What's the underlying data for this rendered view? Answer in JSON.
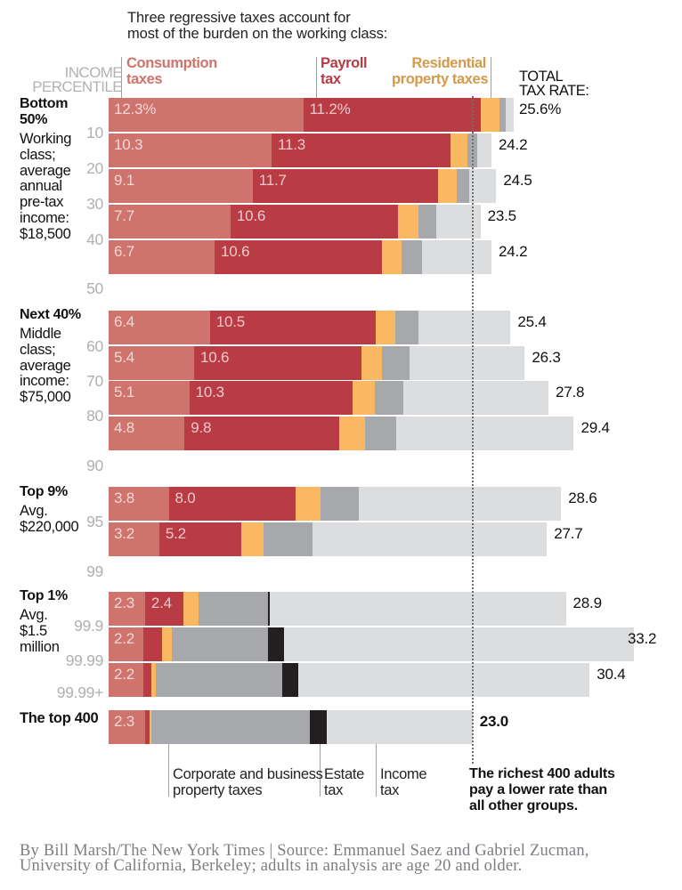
{
  "header": {
    "intro_lines": [
      "Three regressive taxes account for",
      "most of the burden on the working class:"
    ],
    "percentile_axis_lines": [
      "INCOME",
      "PERCENTILE"
    ],
    "total_rate_lines": [
      "TOTAL",
      "TAX RATE:"
    ]
  },
  "legend": {
    "consumption": [
      "Consumption",
      "taxes"
    ],
    "payroll": [
      "Payroll",
      "tax"
    ],
    "residential": [
      "Residential",
      "property taxes"
    ],
    "corporate": [
      "Corporate and business",
      "property taxes"
    ],
    "estate": [
      "Estate",
      "tax"
    ],
    "income": [
      "Income",
      "tax"
    ]
  },
  "annotation": {
    "lines": [
      "The richest 400 adults",
      "pay a lower rate than",
      "all other groups."
    ]
  },
  "footer": {
    "lines": [
      "By Bill Marsh/The New York Times | Source: Emmanuel Saez and Gabriel Zucman,",
      "University of California, Berkeley; adults in analysis are age 20 and older."
    ]
  },
  "chart_data": {
    "type": "bar",
    "orientation": "horizontal-stacked",
    "title": "Three regressive taxes account for most of the burden on the working class:",
    "ylabel": "INCOME PERCENTILE",
    "xlabel": "TOTAL TAX RATE",
    "unit": "%",
    "xlim": [
      0,
      33.2
    ],
    "grid": false,
    "reference_line": {
      "value": 23.0,
      "style": "dotted",
      "label": "The richest 400 adults pay a lower rate than all other groups."
    },
    "series": [
      {
        "key": "consumption",
        "name": "Consumption taxes",
        "color": "#cf746c"
      },
      {
        "key": "payroll",
        "name": "Payroll tax",
        "color": "#b93c45"
      },
      {
        "key": "residential",
        "name": "Residential property taxes",
        "color": "#fbb862"
      },
      {
        "key": "corporate",
        "name": "Corporate and business property taxes",
        "color": "#a7a8ab"
      },
      {
        "key": "estate",
        "name": "Estate tax",
        "color": "#231f20"
      },
      {
        "key": "income",
        "name": "Income tax",
        "color": "#dcdddf"
      }
    ],
    "groups": [
      {
        "title": "Bottom 50%",
        "desc": [
          "Working",
          "class;",
          "average",
          "annual",
          "pre-tax",
          "income:",
          "$18,500"
        ]
      },
      {
        "title": "Next 40%",
        "desc": [
          "Middle",
          "class;",
          "average",
          "income:",
          "$75,000"
        ]
      },
      {
        "title": "Top 9%",
        "desc": [
          "Avg.",
          "$220,000"
        ]
      },
      {
        "title": "Top 1%",
        "desc": [
          "Avg.",
          "$1.5",
          "million"
        ]
      },
      {
        "title": "The top 400",
        "desc": []
      }
    ],
    "percentile_ticks": [
      "10",
      "20",
      "30",
      "40",
      "50",
      "60",
      "70",
      "80",
      "90",
      "95",
      "99",
      "99.9",
      "99.99",
      "99.99+"
    ],
    "rows": [
      {
        "group": 0,
        "percentile": "0-10",
        "values": {
          "consumption": 12.3,
          "payroll": 11.2,
          "residential": 1.2,
          "corporate": 0.4,
          "estate": 0,
          "income": 0.5
        },
        "total": 25.6,
        "labels": {
          "consumption": "12.3%",
          "payroll": "11.2%",
          "total": "25.6%"
        }
      },
      {
        "group": 0,
        "percentile": "10-20",
        "values": {
          "consumption": 10.3,
          "payroll": 11.3,
          "residential": 1.1,
          "corporate": 0.6,
          "estate": 0,
          "income": 0.9
        },
        "total": 24.2,
        "labels": {
          "consumption": "10.3",
          "payroll": "11.3",
          "total": "24.2"
        }
      },
      {
        "group": 0,
        "percentile": "20-30",
        "values": {
          "consumption": 9.1,
          "payroll": 11.7,
          "residential": 1.2,
          "corporate": 0.8,
          "estate": 0,
          "income": 1.7
        },
        "total": 24.5,
        "labels": {
          "consumption": "9.1",
          "payroll": "11.7",
          "total": "24.5"
        }
      },
      {
        "group": 0,
        "percentile": "30-40",
        "values": {
          "consumption": 7.7,
          "payroll": 10.6,
          "residential": 1.3,
          "corporate": 1.1,
          "estate": 0,
          "income": 2.8
        },
        "total": 23.5,
        "labels": {
          "consumption": "7.7",
          "payroll": "10.6",
          "total": "23.5"
        }
      },
      {
        "group": 0,
        "percentile": "40-50",
        "values": {
          "consumption": 6.7,
          "payroll": 10.6,
          "residential": 1.2,
          "corporate": 1.3,
          "estate": 0,
          "income": 4.4
        },
        "total": 24.2,
        "labels": {
          "consumption": "6.7",
          "payroll": "10.6",
          "total": "24.2"
        }
      },
      {
        "group": 1,
        "percentile": "50-60",
        "values": {
          "consumption": 6.4,
          "payroll": 10.5,
          "residential": 1.2,
          "corporate": 1.5,
          "estate": 0,
          "income": 5.8
        },
        "total": 25.4,
        "labels": {
          "consumption": "6.4",
          "payroll": "10.5",
          "total": "25.4"
        }
      },
      {
        "group": 1,
        "percentile": "60-70",
        "values": {
          "consumption": 5.4,
          "payroll": 10.6,
          "residential": 1.3,
          "corporate": 1.7,
          "estate": 0,
          "income": 7.3
        },
        "total": 26.3,
        "labels": {
          "consumption": "5.4",
          "payroll": "10.6",
          "total": "26.3"
        }
      },
      {
        "group": 1,
        "percentile": "70-80",
        "values": {
          "consumption": 5.1,
          "payroll": 10.3,
          "residential": 1.4,
          "corporate": 1.8,
          "estate": 0,
          "income": 9.2
        },
        "total": 27.8,
        "labels": {
          "consumption": "5.1",
          "payroll": "10.3",
          "total": "27.8"
        }
      },
      {
        "group": 1,
        "percentile": "80-90",
        "values": {
          "consumption": 4.8,
          "payroll": 9.8,
          "residential": 1.6,
          "corporate": 2.0,
          "estate": 0,
          "income": 11.2
        },
        "total": 29.4,
        "labels": {
          "consumption": "4.8",
          "payroll": "9.8",
          "total": "29.4"
        }
      },
      {
        "group": 2,
        "percentile": "90-95",
        "values": {
          "consumption": 3.8,
          "payroll": 8.0,
          "residential": 1.6,
          "corporate": 2.4,
          "estate": 0,
          "income": 12.8
        },
        "total": 28.6,
        "labels": {
          "consumption": "3.8",
          "payroll": "8.0",
          "total": "28.6"
        }
      },
      {
        "group": 2,
        "percentile": "95-99",
        "values": {
          "consumption": 3.2,
          "payroll": 5.2,
          "residential": 1.4,
          "corporate": 3.1,
          "estate": 0,
          "income": 14.8
        },
        "total": 27.7,
        "labels": {
          "consumption": "3.2",
          "payroll": "5.2",
          "total": "27.7"
        }
      },
      {
        "group": 3,
        "percentile": "99-99.9",
        "values": {
          "consumption": 2.3,
          "payroll": 2.4,
          "residential": 1.0,
          "corporate": 4.4,
          "estate": 0.1,
          "income": 18.7
        },
        "total": 28.9,
        "labels": {
          "consumption": "2.3",
          "payroll": "2.4",
          "total": "28.9"
        }
      },
      {
        "group": 3,
        "percentile": "99.9-99.99",
        "values": {
          "consumption": 2.2,
          "payroll": 1.2,
          "residential": 0.6,
          "corporate": 6.1,
          "estate": 1.0,
          "income": 22.1
        },
        "total": 33.2,
        "labels": {
          "consumption": "2.2",
          "total": "33.2"
        }
      },
      {
        "group": 3,
        "percentile": "99.99+",
        "values": {
          "consumption": 2.2,
          "payroll": 0.5,
          "residential": 0.3,
          "corporate": 8.0,
          "estate": 1.0,
          "income": 18.4
        },
        "total": 30.4,
        "labels": {
          "consumption": "2.2",
          "total": "30.4"
        }
      },
      {
        "group": 4,
        "percentile": "Top 400",
        "values": {
          "consumption": 2.3,
          "payroll": 0.3,
          "residential": 0.1,
          "corporate": 10.0,
          "estate": 1.1,
          "income": 9.2
        },
        "total": 23.0,
        "labels": {
          "consumption": "2.3",
          "total": "23.0"
        }
      }
    ]
  }
}
